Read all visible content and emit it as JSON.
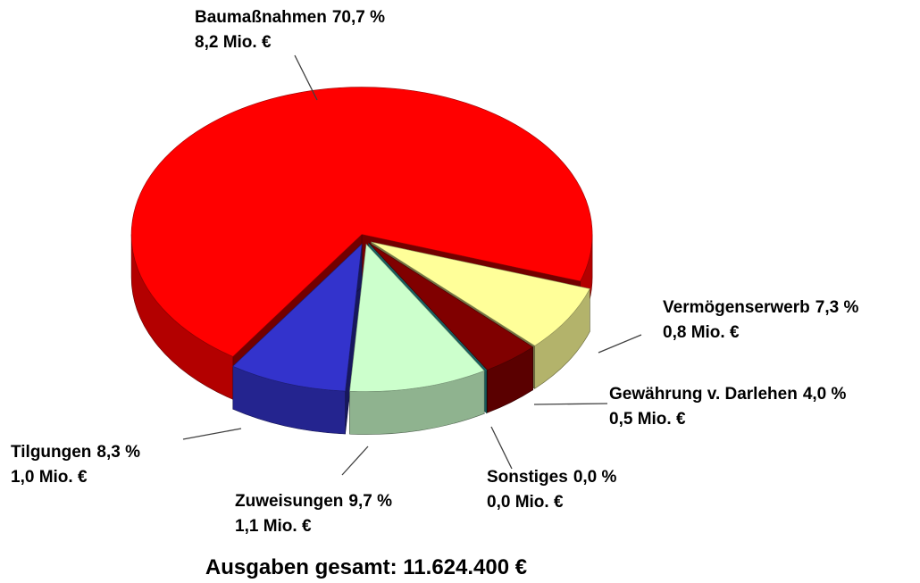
{
  "chart_data": {
    "type": "pie",
    "three_d": true,
    "exploded": true,
    "categories": [
      "Baumaßnahmen",
      "Vermögenserwerb",
      "Gewährung v. Darlehen",
      "Sonstiges",
      "Zuweisungen",
      "Tilgungen"
    ],
    "values": [
      70.7,
      7.3,
      4.0,
      0.0,
      9.7,
      8.3
    ],
    "value_labels": [
      "70,7 %",
      "7,3 %",
      "4,0 %",
      "0,0 %",
      "9,7 %",
      "8,3 %"
    ],
    "amounts": [
      8.2,
      0.8,
      0.5,
      0.0,
      1.1,
      1.0
    ],
    "amount_labels": [
      "8,2 Mio. €",
      "0,8 Mio. €",
      "0,5 Mio. €",
      "0,0 Mio. €",
      "1,1 Mio. €",
      "1,0 Mio. €"
    ],
    "colors": [
      "#ff0000",
      "#ffff99",
      "#800000",
      "#33cccc",
      "#ccffcc",
      "#3333cc"
    ],
    "total_label": "Ausgaben gesamt: 11.624.400 €"
  }
}
